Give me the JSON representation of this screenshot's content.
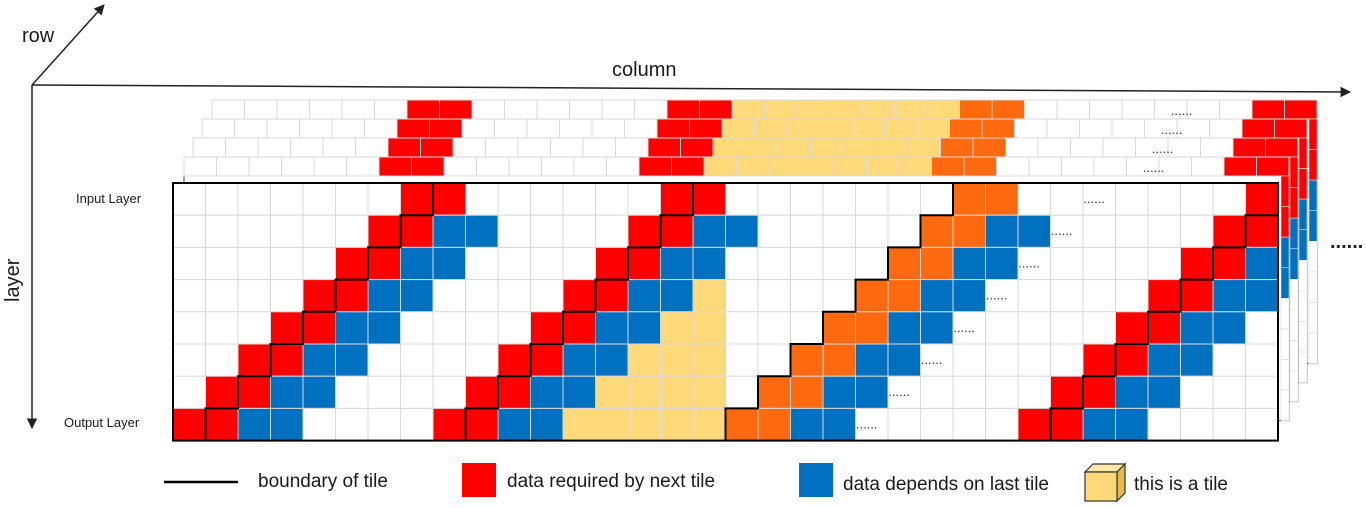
{
  "axes": {
    "row": "row",
    "column": "column",
    "layer": "layer"
  },
  "layers": {
    "input": "Input Layer",
    "output": "Output Layer"
  },
  "ellipsis": "......",
  "legend": [
    {
      "key": "boundary",
      "label": "boundary of tile",
      "icon": "line-icon"
    },
    {
      "key": "required",
      "label": "data required by next tile",
      "icon": "red-square-icon"
    },
    {
      "key": "depends",
      "label": "data depends on last tile",
      "icon": "blue-square-icon"
    },
    {
      "key": "tile",
      "label": "this is a tile",
      "icon": "yellow-cube-icon"
    }
  ],
  "colors": {
    "required": "#ff0000",
    "depends": "#0070c0",
    "tile": "#ffd97a",
    "next_required": "#ff6a10",
    "overlap": "#7f9a5e",
    "grid_line": "#d9d9d9",
    "boundary": "#000000"
  }
}
